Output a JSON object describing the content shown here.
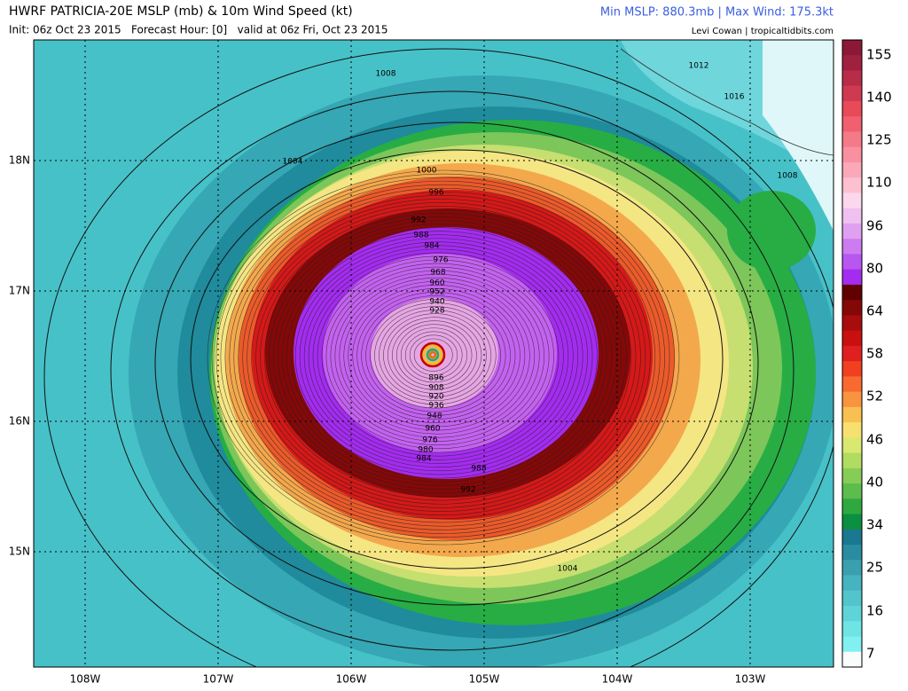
{
  "header": {
    "title": "HWRF PATRICIA-20E MSLP (mb) & 10m Wind Speed (kt)",
    "subtitle": "Init: 06z Oct 23 2015   Forecast Hour: [0]   valid at 06z Fri, Oct 23 2015",
    "stats": "Min MSLP: 880.3mb | Max Wind: 175.3kt",
    "credit": "Levi Cowan | tropicaltidbits.com"
  },
  "map": {
    "lon_labels": [
      "108W",
      "107W",
      "106W",
      "105W",
      "104W",
      "103W"
    ],
    "lat_labels": [
      "18N",
      "17N",
      "16N",
      "15N"
    ],
    "contour_labels": [
      "1008",
      "1004",
      "1000",
      "996",
      "992",
      "988",
      "984",
      "976",
      "968",
      "960",
      "952",
      "940",
      "928",
      "896",
      "908",
      "920",
      "936",
      "948",
      "960",
      "976",
      "980",
      "984",
      "988",
      "992",
      "1004",
      "1008",
      "1012",
      "1016"
    ]
  },
  "colorbar": {
    "labels": [
      "155",
      "140",
      "125",
      "110",
      "96",
      "80",
      "64",
      "58",
      "52",
      "46",
      "40",
      "34",
      "25",
      "16",
      "7"
    ]
  }
}
